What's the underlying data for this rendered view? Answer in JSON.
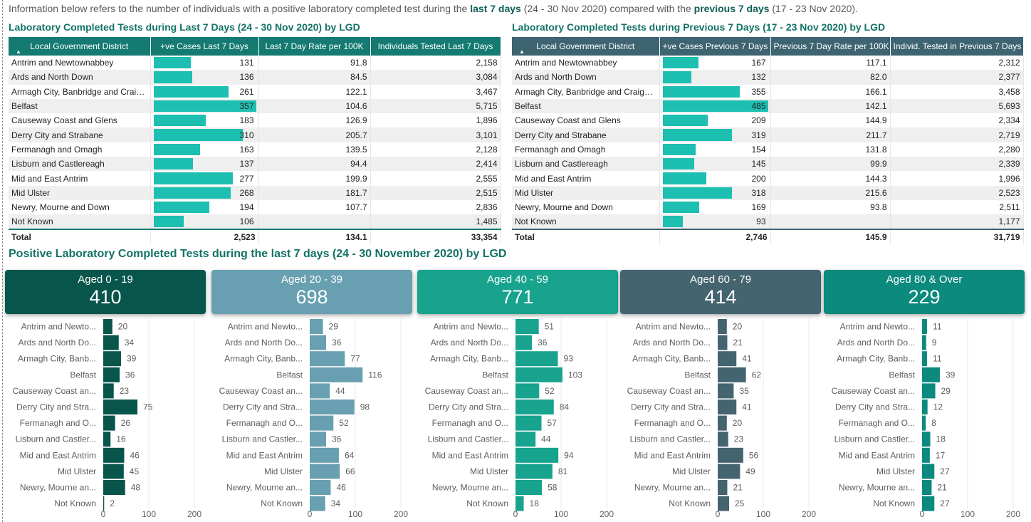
{
  "info": {
    "p1": "Information below refers to the number of individuals with a positive laboratory completed test during the",
    "b1": "last 7 days",
    "p2": "(24 - 30 Nov 2020) compared with the",
    "b2": "previous 7 days",
    "p3": "(17 - 23 Nov 2020)."
  },
  "last7": {
    "title": "Laboratory Completed Tests during Last 7 Days (24 - 30 Nov 2020) by LGD",
    "headers": [
      "Local Government District",
      "+ve Cases Last 7 Days",
      "Last 7 Day Rate per 100K",
      "Individuals Tested Last 7 Days"
    ],
    "rows": [
      {
        "lgd": "Antrim and Newtownabbey",
        "cases": 131,
        "cases_t": "131",
        "rate": "91.8",
        "tested": "2,158"
      },
      {
        "lgd": "Ards and North Down",
        "cases": 136,
        "cases_t": "136",
        "rate": "84.5",
        "tested": "3,084"
      },
      {
        "lgd": "Armagh City, Banbridge and Craigavon",
        "cases": 261,
        "cases_t": "261",
        "rate": "122.1",
        "tested": "3,467"
      },
      {
        "lgd": "Belfast",
        "cases": 357,
        "cases_t": "357",
        "rate": "104.6",
        "tested": "5,715"
      },
      {
        "lgd": "Causeway Coast and Glens",
        "cases": 183,
        "cases_t": "183",
        "rate": "126.9",
        "tested": "1,896"
      },
      {
        "lgd": "Derry City and Strabane",
        "cases": 310,
        "cases_t": "310",
        "rate": "205.7",
        "tested": "3,101"
      },
      {
        "lgd": "Fermanagh and Omagh",
        "cases": 163,
        "cases_t": "163",
        "rate": "139.5",
        "tested": "2,128"
      },
      {
        "lgd": "Lisburn and Castlereagh",
        "cases": 137,
        "cases_t": "137",
        "rate": "94.4",
        "tested": "2,414"
      },
      {
        "lgd": "Mid and East Antrim",
        "cases": 277,
        "cases_t": "277",
        "rate": "199.9",
        "tested": "2,555"
      },
      {
        "lgd": "Mid Ulster",
        "cases": 268,
        "cases_t": "268",
        "rate": "181.7",
        "tested": "2,515"
      },
      {
        "lgd": "Newry, Mourne and Down",
        "cases": 194,
        "cases_t": "194",
        "rate": "107.7",
        "tested": "2,836"
      },
      {
        "lgd": "Not Known",
        "cases": 106,
        "cases_t": "106",
        "rate": "",
        "tested": "1,485"
      }
    ],
    "total": {
      "label": "Total",
      "cases": "2,523",
      "rate": "134.1",
      "tested": "33,354"
    }
  },
  "prev7": {
    "title": "Laboratory Completed Tests during Previous 7 Days (17 - 23 Nov 2020) by LGD",
    "headers": [
      "Local Government District",
      "+ve Cases Previous 7 Days",
      "Previous 7 Day Rate per 100K",
      "Individ. Tested in Previous 7 Days"
    ],
    "rows": [
      {
        "lgd": "Antrim and Newtownabbey",
        "cases": 167,
        "cases_t": "167",
        "rate": "117.1",
        "tested": "2,312"
      },
      {
        "lgd": "Ards and North Down",
        "cases": 132,
        "cases_t": "132",
        "rate": "82.0",
        "tested": "2,377"
      },
      {
        "lgd": "Armagh City, Banbridge and Craigavon",
        "cases": 355,
        "cases_t": "355",
        "rate": "166.1",
        "tested": "3,458"
      },
      {
        "lgd": "Belfast",
        "cases": 485,
        "cases_t": "485",
        "rate": "142.1",
        "tested": "5,693"
      },
      {
        "lgd": "Causeway Coast and Glens",
        "cases": 209,
        "cases_t": "209",
        "rate": "144.9",
        "tested": "2,334"
      },
      {
        "lgd": "Derry City and Strabane",
        "cases": 319,
        "cases_t": "319",
        "rate": "211.7",
        "tested": "2,719"
      },
      {
        "lgd": "Fermanagh and Omagh",
        "cases": 154,
        "cases_t": "154",
        "rate": "131.8",
        "tested": "2,280"
      },
      {
        "lgd": "Lisburn and Castlereagh",
        "cases": 145,
        "cases_t": "145",
        "rate": "99.9",
        "tested": "2,339"
      },
      {
        "lgd": "Mid and East Antrim",
        "cases": 200,
        "cases_t": "200",
        "rate": "144.3",
        "tested": "1,996"
      },
      {
        "lgd": "Mid Ulster",
        "cases": 318,
        "cases_t": "318",
        "rate": "215.6",
        "tested": "2,523"
      },
      {
        "lgd": "Newry, Mourne and Down",
        "cases": 169,
        "cases_t": "169",
        "rate": "93.8",
        "tested": "2,511"
      },
      {
        "lgd": "Not Known",
        "cases": 93,
        "cases_t": "93",
        "rate": "",
        "tested": "1,177"
      }
    ],
    "total": {
      "label": "Total",
      "cases": "2,746",
      "rate": "145.9",
      "tested": "31,719"
    }
  },
  "age_section_title": "Positive Laboratory Completed Tests during the last 7 days (24 - 30 November 2020) by LGD",
  "age_cards": [
    {
      "label": "Aged 0 - 19",
      "value": "410",
      "color": "#08554b"
    },
    {
      "label": "Aged 20 - 39",
      "value": "698",
      "color": "#69a0b1"
    },
    {
      "label": "Aged 40 - 59",
      "value": "771",
      "color": "#17a38d"
    },
    {
      "label": "Aged 60 - 79",
      "value": "414",
      "color": "#44646f"
    },
    {
      "label": "Aged 80 & Over",
      "value": "229",
      "color": "#0b8a7d"
    }
  ],
  "chart_data": [
    {
      "type": "bar",
      "orientation": "horizontal",
      "categories": [
        "Antrim and Newto...",
        "Ards and North Do...",
        "Armagh City, Banb...",
        "Belfast",
        "Causeway Coast an...",
        "Derry City and Stra...",
        "Fermanagh and O...",
        "Lisburn and Castler...",
        "Mid and East Antrim",
        "Mid Ulster",
        "Newry, Mourne an...",
        "Not Known"
      ],
      "values": [
        20,
        34,
        39,
        36,
        23,
        75,
        26,
        16,
        46,
        45,
        48,
        2
      ],
      "xlim": [
        0,
        200
      ],
      "xticks": [
        "0",
        "100",
        "200"
      ],
      "color": "#08554b"
    },
    {
      "type": "bar",
      "orientation": "horizontal",
      "categories": [
        "Antrim and Newto...",
        "Ards and North Do...",
        "Armagh City, Banb...",
        "Belfast",
        "Causeway Coast an...",
        "Derry City and Stra...",
        "Fermanagh and O...",
        "Lisburn and Castler...",
        "Mid and East Antrim",
        "Mid Ulster",
        "Newry, Mourne an...",
        "Not Known"
      ],
      "values": [
        29,
        36,
        77,
        116,
        44,
        98,
        52,
        36,
        64,
        66,
        46,
        34
      ],
      "xlim": [
        0,
        200
      ],
      "xticks": [
        "0",
        "100",
        "200"
      ],
      "color": "#69a0b1"
    },
    {
      "type": "bar",
      "orientation": "horizontal",
      "categories": [
        "Antrim and Newto...",
        "Ards and North Do...",
        "Armagh City, Banb...",
        "Belfast",
        "Causeway Coast an...",
        "Derry City and Stra...",
        "Fermanagh and O...",
        "Lisburn and Castler...",
        "Mid and East Antrim",
        "Mid Ulster",
        "Newry, Mourne an...",
        "Not Known"
      ],
      "values": [
        51,
        36,
        93,
        103,
        52,
        84,
        57,
        44,
        94,
        81,
        58,
        18
      ],
      "xlim": [
        0,
        200
      ],
      "xticks": [
        "0",
        "100",
        "200"
      ],
      "color": "#17a38d"
    },
    {
      "type": "bar",
      "orientation": "horizontal",
      "categories": [
        "Antrim and Newto...",
        "Ards and North Do...",
        "Armagh City, Banb...",
        "Belfast",
        "Causeway Coast an...",
        "Derry City and Stra...",
        "Fermanagh and O...",
        "Lisburn and Castler...",
        "Mid and East Antrim",
        "Mid Ulster",
        "Newry, Mourne an...",
        "Not Known"
      ],
      "values": [
        20,
        21,
        41,
        62,
        35,
        41,
        20,
        23,
        56,
        49,
        21,
        25
      ],
      "xlim": [
        0,
        200
      ],
      "xticks": [
        "0",
        "100",
        "200"
      ],
      "color": "#44646f"
    },
    {
      "type": "bar",
      "orientation": "horizontal",
      "categories": [
        "Antrim and Newto...",
        "Ards and North Do...",
        "Armagh City, Banb...",
        "Belfast",
        "Causeway Coast an...",
        "Derry City and Stra...",
        "Fermanagh and O...",
        "Lisburn and Castler...",
        "Mid and East Antrim",
        "Mid Ulster",
        "Newry, Mourne an...",
        "Not Known"
      ],
      "values": [
        11,
        9,
        11,
        39,
        29,
        12,
        8,
        18,
        17,
        27,
        21,
        27
      ],
      "xlim": [
        0,
        200
      ],
      "xticks": [
        "0",
        "100",
        "200"
      ],
      "color": "#0b8a7d"
    }
  ]
}
